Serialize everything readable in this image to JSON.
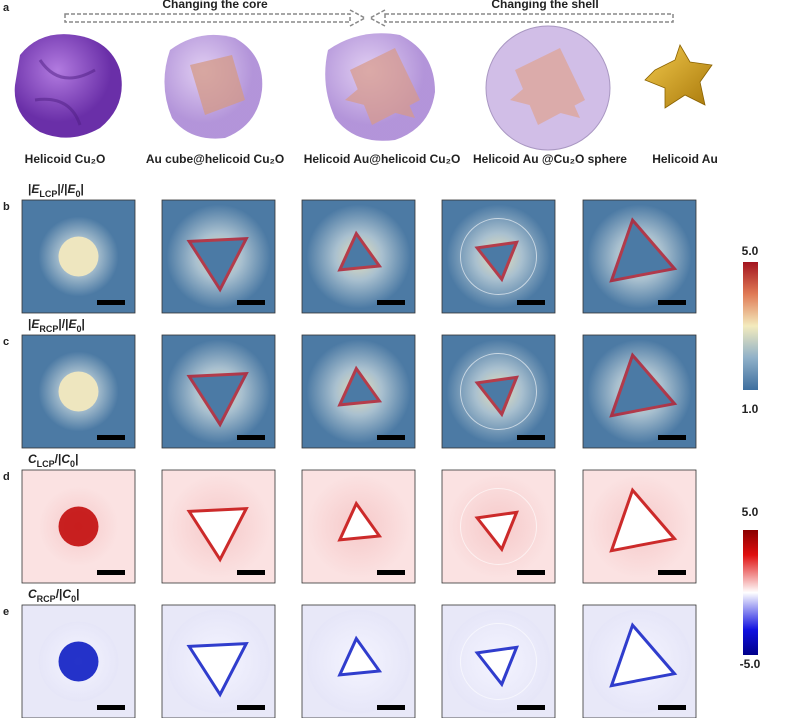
{
  "panel_labels": [
    "a",
    "b",
    "c",
    "d",
    "e"
  ],
  "arrows": [
    "Changing the core",
    "Changing the shell"
  ],
  "particles": [
    "Helicoid Cu₂O",
    "Au cube@helicoid Cu₂O",
    "Helicoid Au@helicoid Cu₂O",
    "Helicoid Au @Cu₂O sphere",
    "Helicoid Au"
  ],
  "row_titles": [
    [
      "|",
      "E",
      "LCP",
      "|/|",
      "E",
      "0",
      "|"
    ],
    [
      "|",
      "E",
      "RCP",
      "|/|",
      "E",
      "0",
      "|"
    ],
    [
      "C",
      "LCP",
      "/|",
      "C",
      "0",
      "|"
    ],
    [
      "C",
      "RCP",
      "/|",
      "C",
      "0",
      "|"
    ]
  ],
  "colorbars": [
    {
      "max": "5.0",
      "min": "1.0"
    },
    {
      "max": "5.0",
      "min": "-5.0"
    }
  ]
}
